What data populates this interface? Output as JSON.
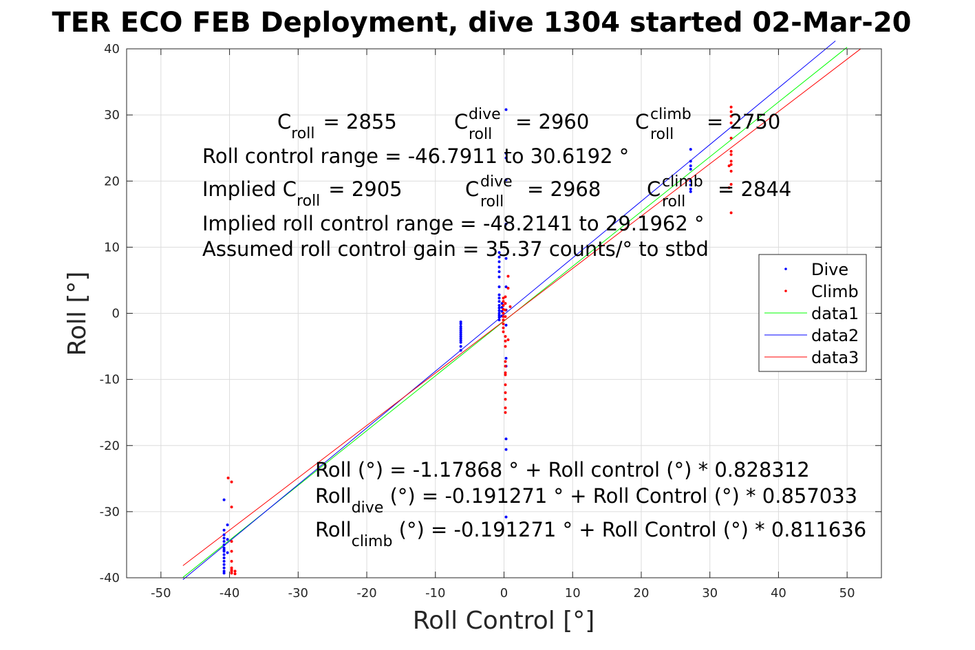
{
  "title": "TER ECO FEB Deployment, dive 1304 started 02-Mar-20",
  "chart_data": {
    "type": "scatter",
    "xlabel": "Roll Control [°]",
    "ylabel": "Roll [°]",
    "xlim": [
      -55,
      55
    ],
    "ylim": [
      -40,
      40
    ],
    "xticks": [
      "-50",
      "-40",
      "-30",
      "-20",
      "-10",
      "0",
      "10",
      "20",
      "30",
      "40",
      "50"
    ],
    "yticks": [
      "-40",
      "-30",
      "-20",
      "-10",
      "0",
      "10",
      "20",
      "30",
      "40"
    ],
    "grid": true,
    "legend_position": "right",
    "legend": [
      "Dive",
      "Climb",
      "data1",
      "data2",
      "data3"
    ],
    "series": [
      {
        "name": "Dive",
        "kind": "points",
        "color": "#0000ff",
        "x": [
          -40.8,
          -40.8,
          -40.8,
          -40.8,
          -40.8,
          -40.8,
          -40.8,
          -40.8,
          -40.8,
          -40.8,
          -40.8,
          -40.8,
          -40.8,
          -40.8,
          -40.8,
          -40.8,
          -40.3,
          -40.3,
          -40.3,
          -6.3,
          -6.3,
          -6.3,
          -6.3,
          -6.3,
          -6.3,
          -6.3,
          -6.3,
          -6.3,
          -6.3,
          -6.3,
          -6.3,
          -6.3,
          -0.7,
          -0.7,
          -0.7,
          -0.7,
          -0.7,
          -0.7,
          -0.7,
          -0.7,
          -0.7,
          -0.7,
          -0.7,
          -0.7,
          -0.7,
          -0.7,
          -0.7,
          -0.7,
          -0.7,
          -0.3,
          -0.3,
          -0.3,
          -0.3,
          0.3,
          0.3,
          0.3,
          0.3,
          0.3,
          0.3,
          0.3,
          0.3,
          0.3,
          0.3,
          0.3,
          0.3,
          0.3,
          0.3,
          27.2,
          27.2,
          27.2,
          27.2,
          27.2,
          27.2,
          27.2,
          27.2
        ],
        "y": [
          -28.2,
          -32.8,
          -33.5,
          -34.0,
          -34.5,
          -35.0,
          -35.5,
          -36.0,
          -36.5,
          -37.0,
          -37.5,
          -38.0,
          -38.5,
          -39.0,
          -39.3,
          -35.8,
          -32.0,
          -34.2,
          -36.2,
          -1.3,
          -1.6,
          -2.0,
          -2.3,
          -2.6,
          -2.9,
          -3.2,
          -3.5,
          -3.8,
          -4.1,
          -4.4,
          -5.0,
          -5.6,
          9.2,
          8.5,
          7.8,
          7.0,
          6.3,
          5.5,
          4.0,
          2.8,
          2.3,
          1.8,
          1.2,
          0.8,
          0.4,
          0.0,
          -0.3,
          -0.6,
          -1.0,
          1.5,
          0.9,
          0.3,
          -0.4,
          30.8,
          24.2,
          23.5,
          20.2,
          13.5,
          8.3,
          4.0,
          0.5,
          -1.8,
          -6.8,
          -8.0,
          -19.0,
          -20.6,
          -30.8,
          24.8,
          23.0,
          22.3,
          21.8,
          20.0,
          19.4,
          18.8,
          18.4
        ]
      },
      {
        "name": "Climb",
        "kind": "points",
        "color": "#ff0000",
        "x": [
          -40.2,
          -39.7,
          -39.7,
          -39.7,
          -39.7,
          -39.7,
          -39.7,
          -39.7,
          -39.7,
          -39.7,
          -39.2,
          -39.2,
          -0.1,
          -0.1,
          -0.1,
          -0.1,
          -0.1,
          -0.1,
          -0.1,
          -0.1,
          -0.1,
          -0.1,
          0.2,
          0.2,
          0.2,
          0.2,
          0.2,
          0.2,
          0.2,
          0.2,
          0.2,
          0.2,
          0.2,
          0.2,
          0.2,
          0.2,
          0.2,
          0.2,
          0.6,
          0.6,
          0.6,
          0.9,
          33.1,
          33.1,
          33.1,
          33.1,
          33.1,
          33.1,
          33.1,
          33.1,
          33.1,
          33.1,
          33.1,
          33.1,
          32.8,
          32.8
        ],
        "y": [
          -24.9,
          -25.5,
          -29.3,
          -34.5,
          -36.0,
          -37.5,
          -38.5,
          -39.0,
          -39.3,
          -38.8,
          -39.0,
          -39.4,
          2.3,
          1.8,
          1.2,
          0.6,
          0.0,
          -0.5,
          -1.0,
          -1.6,
          -2.2,
          -2.8,
          2.5,
          1.5,
          0.5,
          -0.5,
          -3.5,
          -4.2,
          -5.0,
          -7.3,
          -8.0,
          -9.0,
          -9.3,
          -10.8,
          -12.0,
          -13.0,
          -14.3,
          -15.0,
          5.6,
          3.8,
          -4.0,
          1.0,
          31.2,
          30.5,
          29.8,
          28.8,
          26.5,
          24.5,
          24.0,
          23.0,
          22.5,
          21.5,
          19.5,
          15.2,
          22.3,
          19.0
        ]
      },
      {
        "name": "data1",
        "kind": "line",
        "color": "#00ff00",
        "x": [
          -46.79,
          50.0
        ],
        "y": [
          -39.94,
          40.24
        ]
      },
      {
        "name": "data2",
        "kind": "line",
        "color": "#0000ff",
        "x": [
          -46.79,
          48.3
        ],
        "y": [
          -40.29,
          41.2
        ]
      },
      {
        "name": "data3",
        "kind": "line",
        "color": "#ff0000",
        "x": [
          -46.79,
          52.0
        ],
        "y": [
          -38.17,
          40.02
        ]
      }
    ],
    "annotations": {
      "c_roll_label": "C",
      "c_roll_sub": "roll",
      "c_roll_value": "= 2855",
      "c_dive_sup": "dive",
      "c_dive_value": "= 2960",
      "c_climb_sup": "climb",
      "c_climb_value": "= 2750",
      "range_text": "Roll control range = -46.7911 to 30.6192 °",
      "implied_prefix": "Implied C",
      "implied_value": "= 2905",
      "implied_dive_value": "= 2968",
      "implied_climb_value": "= 2844",
      "implied_range_text": "Implied roll control range = -48.2141 to 29.1962 °",
      "gain_text": "Assumed roll control gain = 35.37 counts/° to stbd",
      "fit1_text": "Roll (°) = -1.17868 ° + Roll control (°) * 0.828312",
      "roll_word": "Roll",
      "fit2_sub": "dive",
      "fit2_rest": " (°) = -0.191271 ° + Roll Control (°) * 0.857033",
      "fit3_sub": "climb",
      "fit3_rest": " (°) = -0.191271 ° + Roll Control (°) * 0.811636"
    }
  }
}
